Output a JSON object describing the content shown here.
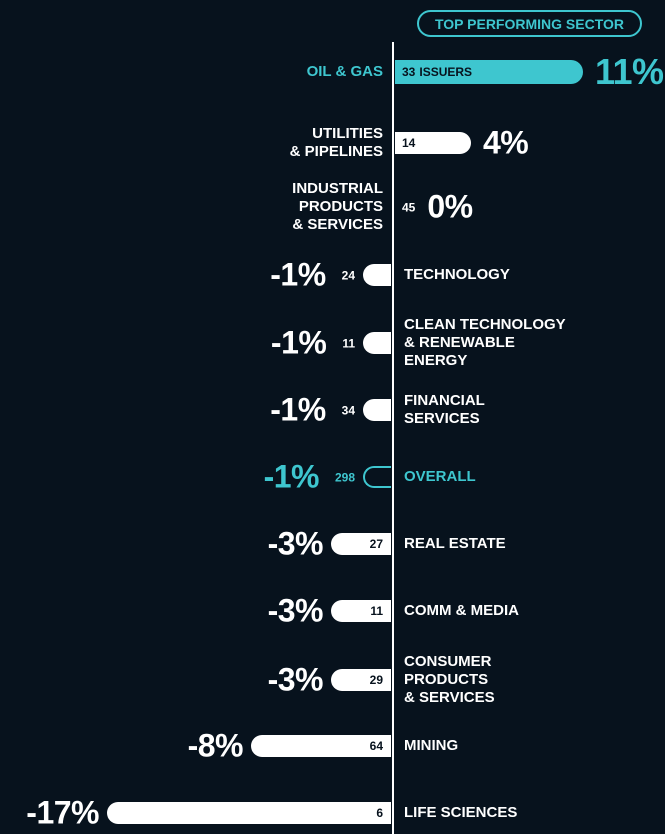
{
  "chart_data": {
    "type": "bar",
    "badge": "TOP PERFORMING SECTOR",
    "categories": [
      "OIL & GAS",
      "UTILITIES\n& PIPELINES",
      "INDUSTRIAL\nPRODUCTS\n& SERVICES",
      "TECHNOLOGY",
      "CLEAN TECHNOLOGY\n& RENEWABLE\nENERGY",
      "FINANCIAL\nSERVICES",
      "OVERALL",
      "REAL ESTATE",
      "COMM & MEDIA",
      "CONSUMER\nPRODUCTS\n& SERVICES",
      "MINING",
      "LIFE SCIENCES"
    ],
    "values": [
      11,
      4,
      0,
      -1,
      -1,
      -1,
      -1,
      -3,
      -3,
      -3,
      -8,
      -17
    ],
    "value_labels": [
      "11%",
      "4%",
      "0%",
      "-1%",
      "-1%",
      "-1%",
      "-1%",
      "-3%",
      "-3%",
      "-3%",
      "-8%",
      "-17%"
    ],
    "issuers": [
      33,
      14,
      45,
      24,
      11,
      34,
      298,
      27,
      11,
      29,
      64,
      6
    ],
    "issuers_unit": "ISSUERS",
    "color": "#ffffff",
    "highlight_color": "#3ec6cf",
    "top_index": 0,
    "outline_index": 6
  }
}
